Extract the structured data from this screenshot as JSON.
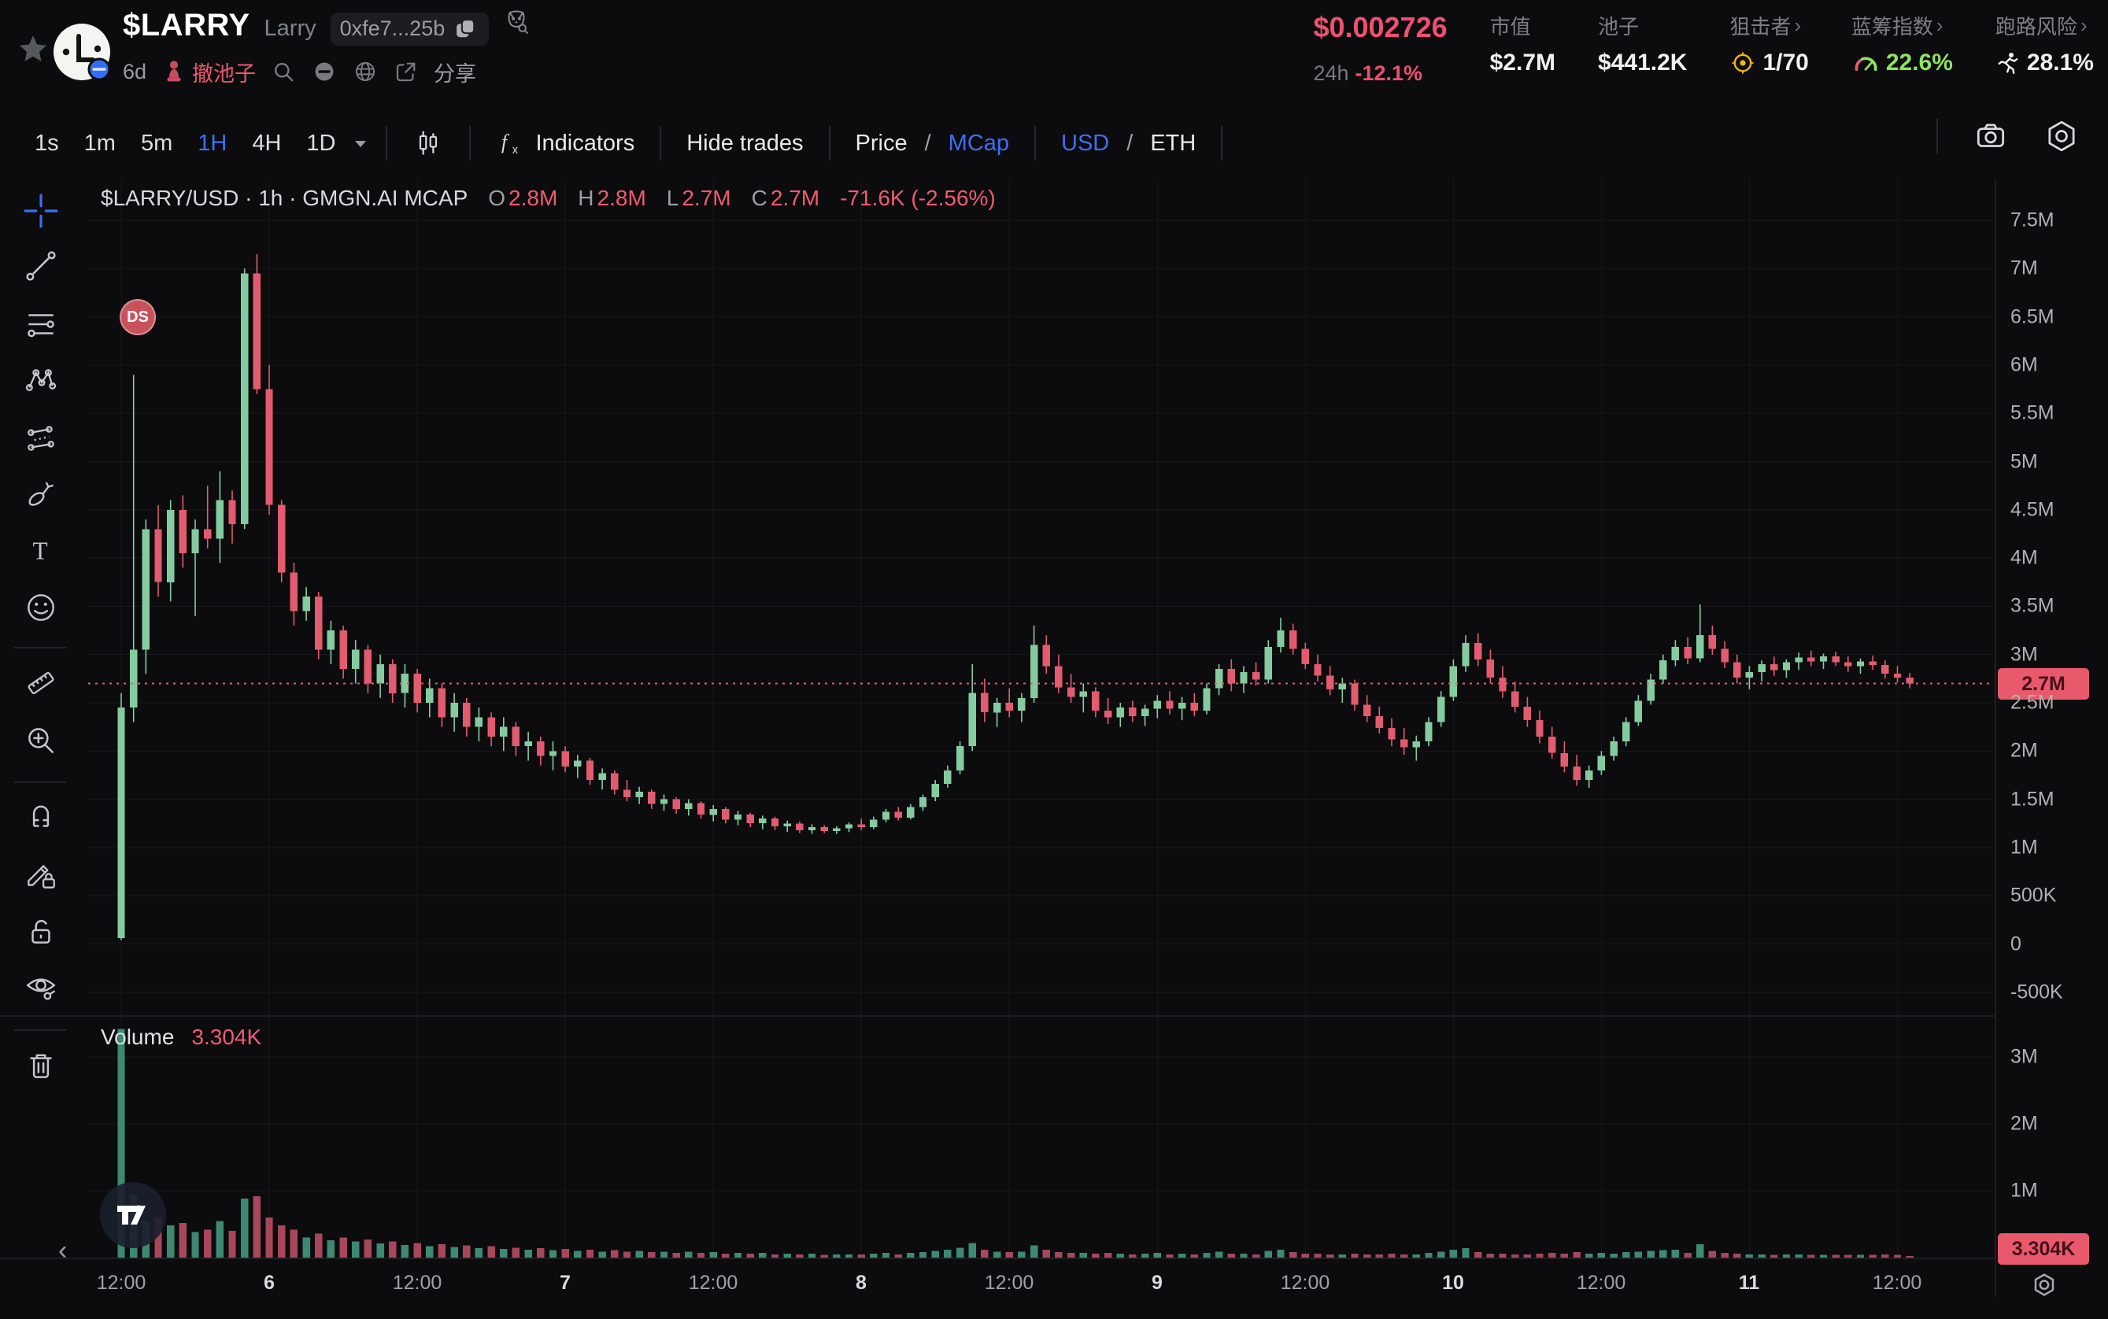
{
  "header": {
    "token": {
      "symbol": "$LARRY",
      "name": "Larry",
      "contract": "0xfe7...25b",
      "age": "6d",
      "rug_flag": "撤池子",
      "share": "分享"
    },
    "price": {
      "value": "$0.002726",
      "period": "24h",
      "change": "-12.1%"
    },
    "stats": [
      {
        "label": "市值",
        "value": "$2.7M",
        "icon": "",
        "link": false,
        "value_color": "#eef0f2"
      },
      {
        "label": "池子",
        "value": "$441.2K",
        "icon": "",
        "link": false,
        "value_color": "#eef0f2"
      },
      {
        "label": "狙击者",
        "value": "1/70",
        "icon": "target-icon",
        "link": true,
        "value_color": "#eef0f2"
      },
      {
        "label": "蓝筹指数",
        "value": "22.6%",
        "icon": "gauge-icon",
        "link": true,
        "value_color": "#8ee35f"
      },
      {
        "label": "跑路风险",
        "value": "28.1%",
        "icon": "runner-icon",
        "link": true,
        "value_color": "#eef0f2"
      }
    ]
  },
  "toolbar": {
    "intervals": [
      "1s",
      "1m",
      "5m",
      "1H",
      "4H",
      "1D"
    ],
    "active_interval": "1H",
    "indicators": "Indicators",
    "hide_trades": "Hide trades",
    "price": "Price",
    "mcap": "MCap",
    "usd": "USD",
    "eth": "ETH",
    "active_scale": "MCap",
    "active_currency": "USD"
  },
  "sidebar": {
    "tools": [
      {
        "name": "crosshair-tool",
        "active": true
      },
      {
        "name": "trendline-tool"
      },
      {
        "name": "fib-lines-tool"
      },
      {
        "name": "pattern-tool"
      },
      {
        "name": "projection-tool"
      },
      {
        "name": "brush-tool"
      },
      {
        "name": "text-tool"
      },
      {
        "name": "emoji-tool"
      },
      {
        "divider": true
      },
      {
        "name": "ruler-tool"
      },
      {
        "name": "zoom-in-tool"
      },
      {
        "divider": true
      },
      {
        "name": "magnet-tool"
      },
      {
        "name": "drawing-lock-tool"
      },
      {
        "name": "lock-tool"
      },
      {
        "name": "visibility-tool"
      },
      {
        "divider": true
      },
      {
        "name": "delete-tool"
      }
    ]
  },
  "chart": {
    "legend": {
      "title": "$LARRY/USD · 1h · GMGN.AI MCAP",
      "o_label": "O",
      "o": "2.8M",
      "h_label": "H",
      "h": "2.8M",
      "l_label": "L",
      "l": "2.7M",
      "c_label": "C",
      "c": "2.7M",
      "change": "-71.6K (-2.56%)"
    },
    "ds_badge": "DS",
    "volume_label": "Volume",
    "volume_value": "3.304K",
    "price_tag": "2.7M",
    "volume_tag": "3.304K",
    "pan_arrow": "‹"
  },
  "chart_data": {
    "type": "candlestick",
    "symbol": "$LARRY/USD",
    "interval": "1h",
    "value_unit": "market cap, USD millions",
    "current_value_line": 2.7,
    "main_axis": {
      "min": -0.5,
      "max": 7.5,
      "tick_values": [
        7.5,
        7,
        6.5,
        6,
        5.5,
        5,
        4.5,
        4,
        3.5,
        3,
        2.5,
        2,
        1.5,
        1,
        0.5,
        0,
        -0.5
      ],
      "tick_labels": [
        "7.5M",
        "7M",
        "6.5M",
        "6M",
        "5.5M",
        "5M",
        "4.5M",
        "4M",
        "3.5M",
        "3M",
        "2.5M",
        "2M",
        "1.5M",
        "1M",
        "500K",
        "0",
        "-500K"
      ]
    },
    "volume_axis": {
      "tick_values": [
        3,
        2,
        1
      ],
      "tick_labels": [
        "3M",
        "2M",
        "1M"
      ]
    },
    "x_ticks": [
      {
        "h": 0,
        "label": "12:00",
        "major": false
      },
      {
        "h": 12,
        "label": "6",
        "major": true
      },
      {
        "h": 24,
        "label": "12:00",
        "major": false
      },
      {
        "h": 36,
        "label": "7",
        "major": true
      },
      {
        "h": 48,
        "label": "12:00",
        "major": false
      },
      {
        "h": 60,
        "label": "8",
        "major": true
      },
      {
        "h": 72,
        "label": "12:00",
        "major": false
      },
      {
        "h": 84,
        "label": "9",
        "major": true
      },
      {
        "h": 96,
        "label": "12:00",
        "major": false
      },
      {
        "h": 108,
        "label": "10",
        "major": true
      },
      {
        "h": 120,
        "label": "12:00",
        "major": false
      },
      {
        "h": 132,
        "label": "11",
        "major": true
      },
      {
        "h": 144,
        "label": "12:00",
        "major": false
      }
    ],
    "candles": [
      [
        0.06,
        2.6,
        0.04,
        2.45
      ],
      [
        2.45,
        5.9,
        2.3,
        3.05
      ],
      [
        3.05,
        4.4,
        2.8,
        4.3
      ],
      [
        4.3,
        4.55,
        3.6,
        3.75
      ],
      [
        3.75,
        4.6,
        3.55,
        4.5
      ],
      [
        4.5,
        4.65,
        3.9,
        4.05
      ],
      [
        4.05,
        4.4,
        3.4,
        4.3
      ],
      [
        4.3,
        4.75,
        4.1,
        4.2
      ],
      [
        4.2,
        4.9,
        3.95,
        4.6
      ],
      [
        4.6,
        4.7,
        4.15,
        4.35
      ],
      [
        4.35,
        7.0,
        4.3,
        6.95
      ],
      [
        6.95,
        7.15,
        5.7,
        5.75
      ],
      [
        5.75,
        6.0,
        4.45,
        4.55
      ],
      [
        4.55,
        4.6,
        3.75,
        3.85
      ],
      [
        3.85,
        3.95,
        3.3,
        3.45
      ],
      [
        3.45,
        3.7,
        3.35,
        3.6
      ],
      [
        3.6,
        3.65,
        2.95,
        3.05
      ],
      [
        3.05,
        3.35,
        2.9,
        3.25
      ],
      [
        3.25,
        3.3,
        2.75,
        2.85
      ],
      [
        2.85,
        3.15,
        2.7,
        3.05
      ],
      [
        3.05,
        3.1,
        2.6,
        2.7
      ],
      [
        2.7,
        3.0,
        2.55,
        2.9
      ],
      [
        2.9,
        2.95,
        2.5,
        2.6
      ],
      [
        2.6,
        2.9,
        2.45,
        2.8
      ],
      [
        2.8,
        2.85,
        2.4,
        2.5
      ],
      [
        2.5,
        2.75,
        2.35,
        2.65
      ],
      [
        2.65,
        2.7,
        2.25,
        2.35
      ],
      [
        2.35,
        2.6,
        2.2,
        2.5
      ],
      [
        2.5,
        2.55,
        2.15,
        2.25
      ],
      [
        2.25,
        2.45,
        2.1,
        2.35
      ],
      [
        2.35,
        2.4,
        2.05,
        2.15
      ],
      [
        2.15,
        2.35,
        2.0,
        2.25
      ],
      [
        2.25,
        2.3,
        1.95,
        2.05
      ],
      [
        2.05,
        2.2,
        1.9,
        2.1
      ],
      [
        2.1,
        2.15,
        1.85,
        1.95
      ],
      [
        1.95,
        2.1,
        1.8,
        2.0
      ],
      [
        2.0,
        2.05,
        1.78,
        1.84
      ],
      [
        1.84,
        1.96,
        1.72,
        1.9
      ],
      [
        1.9,
        1.93,
        1.65,
        1.7
      ],
      [
        1.7,
        1.82,
        1.6,
        1.77
      ],
      [
        1.77,
        1.8,
        1.55,
        1.6
      ],
      [
        1.6,
        1.7,
        1.48,
        1.52
      ],
      [
        1.52,
        1.63,
        1.45,
        1.58
      ],
      [
        1.58,
        1.6,
        1.4,
        1.45
      ],
      [
        1.45,
        1.55,
        1.38,
        1.5
      ],
      [
        1.5,
        1.52,
        1.35,
        1.4
      ],
      [
        1.4,
        1.5,
        1.33,
        1.46
      ],
      [
        1.46,
        1.48,
        1.3,
        1.34
      ],
      [
        1.34,
        1.44,
        1.27,
        1.4
      ],
      [
        1.4,
        1.42,
        1.25,
        1.29
      ],
      [
        1.29,
        1.38,
        1.23,
        1.34
      ],
      [
        1.34,
        1.36,
        1.21,
        1.25
      ],
      [
        1.25,
        1.33,
        1.19,
        1.3
      ],
      [
        1.3,
        1.32,
        1.18,
        1.22
      ],
      [
        1.22,
        1.28,
        1.16,
        1.25
      ],
      [
        1.25,
        1.27,
        1.15,
        1.18
      ],
      [
        1.18,
        1.24,
        1.14,
        1.21
      ],
      [
        1.21,
        1.23,
        1.15,
        1.17
      ],
      [
        1.17,
        1.22,
        1.14,
        1.2
      ],
      [
        1.2,
        1.26,
        1.16,
        1.24
      ],
      [
        1.24,
        1.3,
        1.18,
        1.21
      ],
      [
        1.21,
        1.32,
        1.19,
        1.29
      ],
      [
        1.29,
        1.4,
        1.26,
        1.37
      ],
      [
        1.37,
        1.42,
        1.28,
        1.31
      ],
      [
        1.31,
        1.45,
        1.29,
        1.42
      ],
      [
        1.42,
        1.55,
        1.38,
        1.52
      ],
      [
        1.52,
        1.7,
        1.48,
        1.66
      ],
      [
        1.66,
        1.85,
        1.62,
        1.8
      ],
      [
        1.8,
        2.1,
        1.76,
        2.05
      ],
      [
        2.05,
        2.9,
        2.0,
        2.6
      ],
      [
        2.6,
        2.75,
        2.3,
        2.4
      ],
      [
        2.4,
        2.55,
        2.25,
        2.5
      ],
      [
        2.5,
        2.65,
        2.35,
        2.42
      ],
      [
        2.42,
        2.6,
        2.3,
        2.55
      ],
      [
        2.55,
        3.3,
        2.5,
        3.1
      ],
      [
        3.1,
        3.2,
        2.8,
        2.88
      ],
      [
        2.88,
        3.0,
        2.6,
        2.66
      ],
      [
        2.66,
        2.8,
        2.5,
        2.56
      ],
      [
        2.56,
        2.7,
        2.4,
        2.62
      ],
      [
        2.62,
        2.66,
        2.35,
        2.42
      ],
      [
        2.42,
        2.55,
        2.28,
        2.35
      ],
      [
        2.35,
        2.5,
        2.25,
        2.45
      ],
      [
        2.45,
        2.52,
        2.3,
        2.36
      ],
      [
        2.36,
        2.48,
        2.26,
        2.44
      ],
      [
        2.44,
        2.58,
        2.34,
        2.52
      ],
      [
        2.52,
        2.62,
        2.38,
        2.44
      ],
      [
        2.44,
        2.56,
        2.32,
        2.5
      ],
      [
        2.5,
        2.6,
        2.36,
        2.42
      ],
      [
        2.42,
        2.7,
        2.38,
        2.65
      ],
      [
        2.65,
        2.9,
        2.58,
        2.85
      ],
      [
        2.85,
        2.95,
        2.62,
        2.7
      ],
      [
        2.7,
        2.88,
        2.6,
        2.82
      ],
      [
        2.82,
        2.92,
        2.68,
        2.74
      ],
      [
        2.74,
        3.15,
        2.7,
        3.08
      ],
      [
        3.08,
        3.38,
        3.02,
        3.25
      ],
      [
        3.25,
        3.32,
        3.0,
        3.06
      ],
      [
        3.06,
        3.12,
        2.85,
        2.9
      ],
      [
        2.9,
        3.0,
        2.72,
        2.78
      ],
      [
        2.78,
        2.88,
        2.58,
        2.64
      ],
      [
        2.64,
        2.76,
        2.5,
        2.7
      ],
      [
        2.7,
        2.74,
        2.42,
        2.48
      ],
      [
        2.48,
        2.58,
        2.3,
        2.36
      ],
      [
        2.36,
        2.46,
        2.18,
        2.24
      ],
      [
        2.24,
        2.34,
        2.05,
        2.12
      ],
      [
        2.12,
        2.24,
        1.96,
        2.04
      ],
      [
        2.04,
        2.16,
        1.9,
        2.1
      ],
      [
        2.1,
        2.35,
        2.05,
        2.3
      ],
      [
        2.3,
        2.62,
        2.25,
        2.56
      ],
      [
        2.56,
        2.95,
        2.52,
        2.88
      ],
      [
        2.88,
        3.2,
        2.82,
        3.12
      ],
      [
        3.12,
        3.22,
        2.88,
        2.95
      ],
      [
        2.95,
        3.05,
        2.7,
        2.76
      ],
      [
        2.76,
        2.88,
        2.55,
        2.62
      ],
      [
        2.62,
        2.72,
        2.4,
        2.46
      ],
      [
        2.46,
        2.56,
        2.25,
        2.32
      ],
      [
        2.32,
        2.42,
        2.08,
        2.15
      ],
      [
        2.15,
        2.25,
        1.92,
        1.98
      ],
      [
        1.98,
        2.1,
        1.78,
        1.84
      ],
      [
        1.84,
        1.96,
        1.64,
        1.7
      ],
      [
        1.7,
        1.85,
        1.62,
        1.8
      ],
      [
        1.8,
        2.0,
        1.75,
        1.95
      ],
      [
        1.95,
        2.15,
        1.9,
        2.1
      ],
      [
        2.1,
        2.35,
        2.05,
        2.3
      ],
      [
        2.3,
        2.58,
        2.26,
        2.52
      ],
      [
        2.52,
        2.8,
        2.48,
        2.74
      ],
      [
        2.74,
        3.0,
        2.7,
        2.94
      ],
      [
        2.94,
        3.15,
        2.88,
        3.08
      ],
      [
        3.08,
        3.18,
        2.9,
        2.96
      ],
      [
        2.96,
        3.52,
        2.92,
        3.2
      ],
      [
        3.2,
        3.3,
        3.0,
        3.06
      ],
      [
        3.06,
        3.14,
        2.86,
        2.92
      ],
      [
        2.92,
        3.0,
        2.7,
        2.76
      ],
      [
        2.76,
        2.88,
        2.64,
        2.82
      ],
      [
        2.82,
        2.94,
        2.72,
        2.9
      ],
      [
        2.9,
        2.98,
        2.78,
        2.84
      ],
      [
        2.84,
        2.95,
        2.76,
        2.92
      ],
      [
        2.92,
        3.02,
        2.84,
        2.97
      ],
      [
        2.97,
        3.04,
        2.88,
        2.93
      ],
      [
        2.93,
        3.01,
        2.85,
        2.98
      ],
      [
        2.98,
        3.03,
        2.88,
        2.92
      ],
      [
        2.92,
        2.98,
        2.82,
        2.88
      ],
      [
        2.88,
        2.96,
        2.8,
        2.93
      ],
      [
        2.93,
        2.99,
        2.84,
        2.89
      ],
      [
        2.89,
        2.94,
        2.75,
        2.8
      ],
      [
        2.8,
        2.88,
        2.71,
        2.76
      ],
      [
        2.76,
        2.81,
        2.65,
        2.7
      ]
    ],
    "volumes": [
      3.42,
      0.95,
      0.55,
      0.6,
      0.48,
      0.52,
      0.38,
      0.42,
      0.55,
      0.4,
      0.88,
      0.92,
      0.6,
      0.48,
      0.42,
      0.3,
      0.36,
      0.26,
      0.3,
      0.24,
      0.27,
      0.21,
      0.24,
      0.19,
      0.22,
      0.17,
      0.2,
      0.16,
      0.18,
      0.14,
      0.17,
      0.13,
      0.15,
      0.12,
      0.14,
      0.11,
      0.13,
      0.1,
      0.12,
      0.09,
      0.11,
      0.09,
      0.1,
      0.08,
      0.09,
      0.07,
      0.09,
      0.07,
      0.08,
      0.06,
      0.07,
      0.06,
      0.07,
      0.05,
      0.06,
      0.05,
      0.06,
      0.04,
      0.05,
      0.05,
      0.05,
      0.06,
      0.07,
      0.05,
      0.07,
      0.08,
      0.1,
      0.12,
      0.15,
      0.22,
      0.12,
      0.09,
      0.08,
      0.09,
      0.18,
      0.12,
      0.08,
      0.07,
      0.07,
      0.06,
      0.07,
      0.06,
      0.05,
      0.06,
      0.07,
      0.05,
      0.06,
      0.05,
      0.07,
      0.09,
      0.06,
      0.06,
      0.05,
      0.1,
      0.12,
      0.08,
      0.06,
      0.06,
      0.05,
      0.05,
      0.06,
      0.05,
      0.05,
      0.06,
      0.05,
      0.05,
      0.07,
      0.09,
      0.12,
      0.14,
      0.08,
      0.06,
      0.06,
      0.05,
      0.05,
      0.06,
      0.07,
      0.06,
      0.08,
      0.06,
      0.07,
      0.06,
      0.08,
      0.09,
      0.1,
      0.11,
      0.12,
      0.07,
      0.2,
      0.1,
      0.07,
      0.06,
      0.05,
      0.05,
      0.04,
      0.05,
      0.05,
      0.04,
      0.04,
      0.04,
      0.04,
      0.04,
      0.04,
      0.05,
      0.04,
      0.003
    ],
    "colors": {
      "up": "#84cc9f",
      "down": "#e25b6e",
      "volume_up": "#3d8a72",
      "volume_down": "#a8475a",
      "price_line": "#e25b6e",
      "tag_background": "#e8596c",
      "accent_blue": "#3e6ef5",
      "grid": "#17181b"
    },
    "grid": true,
    "legend_position": "top-left"
  }
}
